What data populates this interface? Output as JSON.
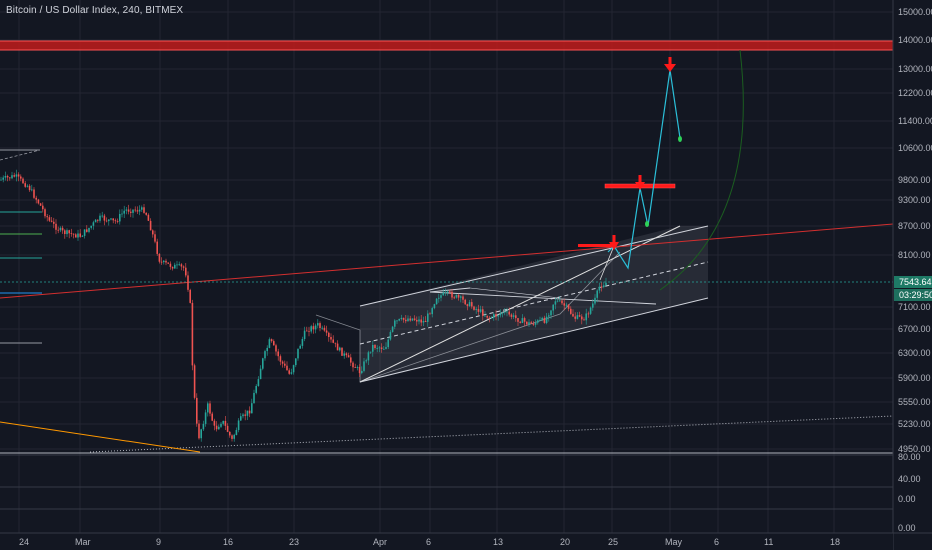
{
  "header": {
    "title": "Bitcoin / US Dollar Index, 240, BITMEX"
  },
  "price_axis": {
    "labels": [
      "15000.00",
      "14000.00",
      "13000.00",
      "12200.00",
      "11400.00",
      "10600.00",
      "9800.00",
      "9300.00",
      "8700.00",
      "8100.00",
      "7100.00",
      "6700.00",
      "6300.00",
      "5900.00",
      "5550.00",
      "5230.00",
      "4950.00"
    ],
    "current_price": "7543.64",
    "countdown": "03:29:50"
  },
  "indicator_axis": {
    "labels": [
      "80.00",
      "40.00",
      "0.00",
      "0.00"
    ]
  },
  "time_axis": {
    "labels": [
      "24",
      "Mar",
      "9",
      "16",
      "23",
      "Apr",
      "6",
      "13",
      "20",
      "25",
      "May",
      "6",
      "11",
      "18"
    ]
  },
  "colors": {
    "background": "#131722",
    "grid": "#232632",
    "bull_candle": "#26a69a",
    "bear_candle": "#ef5350",
    "resistance_zone": "#b71c1c",
    "projection_line": "#2bbfd8",
    "channel_fill": "#9598a1",
    "trend_line": "#d32f2f",
    "price_badge": "#1e7a66",
    "target_arrow": "#ff1a1a",
    "end_dot": "#2ed158",
    "orange_line": "#ff9800"
  },
  "icons": [
    "down-arrow-marker-icon",
    "end-point-dot-icon"
  ]
}
